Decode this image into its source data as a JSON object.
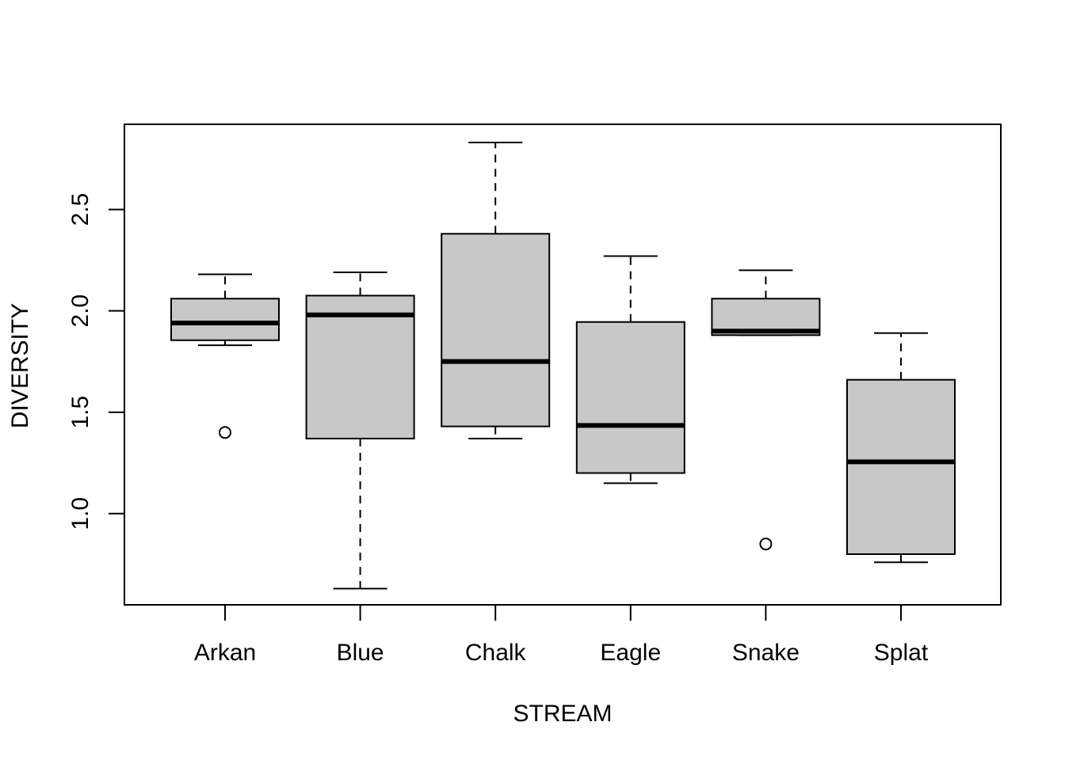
{
  "chart_data": {
    "type": "boxplot",
    "title": "",
    "xlabel": "STREAM",
    "ylabel": "DIVERSITY",
    "ylim": [
      0.55,
      2.92
    ],
    "yticks": [
      1.0,
      1.5,
      2.0,
      2.5
    ],
    "ytick_labels": [
      "1.0",
      "1.5",
      "2.0",
      "2.5"
    ],
    "grid": false,
    "legend": "none",
    "categories": [
      "Arkan",
      "Blue",
      "Chalk",
      "Eagle",
      "Snake",
      "Splat"
    ],
    "boxes": [
      {
        "category": "Arkan",
        "whisker_low": 1.83,
        "q1": 1.855,
        "median": 1.94,
        "q3": 2.06,
        "whisker_high": 2.18,
        "outliers": [
          1.4
        ]
      },
      {
        "category": "Blue",
        "whisker_low": 0.63,
        "q1": 1.37,
        "median": 1.98,
        "q3": 2.075,
        "whisker_high": 2.19,
        "outliers": []
      },
      {
        "category": "Chalk",
        "whisker_low": 1.37,
        "q1": 1.43,
        "median": 1.75,
        "q3": 2.38,
        "whisker_high": 2.83,
        "outliers": []
      },
      {
        "category": "Eagle",
        "whisker_low": 1.15,
        "q1": 1.2,
        "median": 1.435,
        "q3": 1.945,
        "whisker_high": 2.27,
        "outliers": []
      },
      {
        "category": "Snake",
        "whisker_low": 1.88,
        "q1": 1.88,
        "median": 1.9,
        "q3": 2.06,
        "whisker_high": 2.2,
        "outliers": [
          0.85
        ]
      },
      {
        "category": "Splat",
        "whisker_low": 0.76,
        "q1": 0.8,
        "median": 1.255,
        "q3": 1.66,
        "whisker_high": 1.89,
        "outliers": []
      }
    ],
    "colors": {
      "box_fill": "#c8c8c8",
      "line": "#000000",
      "background": "#ffffff"
    }
  }
}
